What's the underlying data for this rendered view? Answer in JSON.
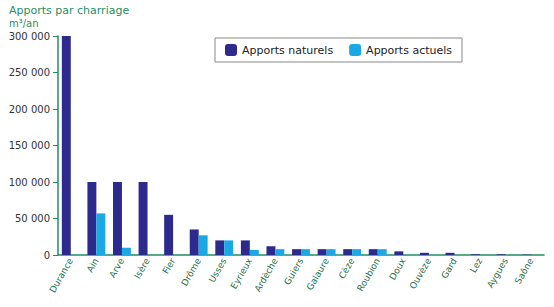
{
  "chart_data": {
    "type": "bar",
    "title": "Apports par charriage",
    "subtitle": "m³/an",
    "categories": [
      "Durance",
      "Ain",
      "Arve",
      "Isère",
      "Fier",
      "Drôme",
      "Usses",
      "Eyrieux",
      "Ardèche",
      "Guiers",
      "Galaure",
      "Cèze",
      "Roubion",
      "Doux",
      "Ouvèze",
      "Gard",
      "Lez",
      "Aygues",
      "Saône"
    ],
    "series": [
      {
        "name": "Apports naturels",
        "color": "#2c2a8c",
        "values": [
          300000,
          100000,
          100000,
          100000,
          55000,
          35000,
          20000,
          20000,
          12000,
          8000,
          8000,
          8000,
          8000,
          5000,
          3000,
          3000,
          1000,
          1000,
          500
        ]
      },
      {
        "name": "Apports actuels",
        "color": "#1ba9e6",
        "values": [
          null,
          57000,
          10000,
          null,
          null,
          27000,
          20000,
          7000,
          8000,
          8000,
          8000,
          8000,
          8000,
          null,
          null,
          null,
          null,
          null,
          null
        ]
      }
    ],
    "ylim": [
      0,
      300000
    ],
    "yticks": [
      0,
      {
        "value": 50000,
        "label": "50 000"
      },
      {
        "value": 100000,
        "label": "100 000"
      },
      {
        "value": 150000,
        "label": "150 000"
      },
      {
        "value": 200000,
        "label": "200 000"
      },
      {
        "value": 250000,
        "label": "250 000"
      },
      {
        "value": 300000,
        "label": "300 000"
      }
    ],
    "grid": false,
    "legend": "top"
  }
}
